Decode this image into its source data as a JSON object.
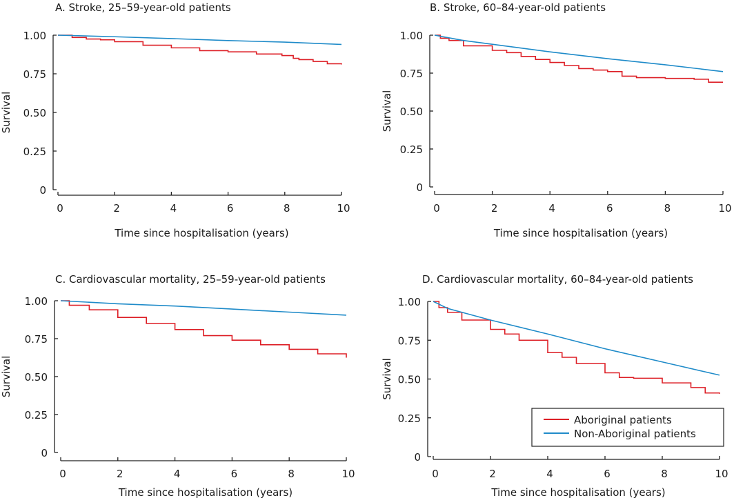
{
  "colors": {
    "aboriginal": "#dd1f26",
    "non_aboriginal": "#1f8bc9",
    "axis": "#222222"
  },
  "legend": {
    "placement": "bottom-right (panel D)",
    "entries": [
      "Aboriginal patients",
      "Non-Aboriginal patients"
    ]
  },
  "chart_data": [
    {
      "type": "line",
      "title": "A. Stroke, 25–59-year-old patients",
      "xlabel": "Time since hospitalisation (years)",
      "ylabel": "Survival",
      "xlim": [
        0,
        10
      ],
      "ylim": [
        0,
        1
      ],
      "xticks": [
        "0",
        "2",
        "4",
        "6",
        "8",
        "10"
      ],
      "yticks": [
        "0",
        "0.25",
        "0.50",
        "0.75",
        "1.00"
      ],
      "series": [
        {
          "name": "Aboriginal patients",
          "x": [
            0,
            0.5,
            1,
            1.5,
            2,
            3,
            4,
            5,
            6,
            7,
            7.9,
            8.3,
            8.5,
            9,
            9.5,
            10
          ],
          "y": [
            1,
            0.985,
            0.975,
            0.97,
            0.958,
            0.935,
            0.918,
            0.9,
            0.892,
            0.878,
            0.868,
            0.85,
            0.842,
            0.83,
            0.815,
            0.81
          ]
        },
        {
          "name": "Non-Aboriginal patients",
          "x": [
            0,
            2,
            4,
            6,
            8,
            10
          ],
          "y": [
            1,
            0.99,
            0.978,
            0.965,
            0.955,
            0.94
          ]
        }
      ]
    },
    {
      "type": "line",
      "title": "B. Stroke, 60–84-year-old patients",
      "xlabel": "Time since hospitalisation (years)",
      "ylabel": "Survival",
      "xlim": [
        0,
        10
      ],
      "ylim": [
        0,
        1
      ],
      "xticks": [
        "0",
        "2",
        "4",
        "6",
        "8",
        "10"
      ],
      "yticks": [
        "0",
        "0.25",
        "0.50",
        "0.75",
        "1.00"
      ],
      "series": [
        {
          "name": "Aboriginal patients",
          "x": [
            0,
            0.2,
            0.5,
            1,
            2,
            2.5,
            3,
            3.5,
            4,
            4.5,
            5,
            5.5,
            6,
            6.5,
            7,
            8,
            9,
            9.5,
            10
          ],
          "y": [
            1,
            0.98,
            0.965,
            0.93,
            0.9,
            0.885,
            0.86,
            0.84,
            0.82,
            0.8,
            0.78,
            0.77,
            0.76,
            0.73,
            0.72,
            0.715,
            0.71,
            0.69,
            0.69
          ]
        },
        {
          "name": "Non-Aboriginal patients",
          "x": [
            0,
            1,
            2,
            4,
            6,
            8,
            10
          ],
          "y": [
            1,
            0.965,
            0.94,
            0.89,
            0.845,
            0.805,
            0.76
          ]
        }
      ]
    },
    {
      "type": "line",
      "title": "C. Cardiovascular mortality, 25–59-year-old patients",
      "xlabel": "Time since hospitalisation (years)",
      "ylabel": "Survival",
      "xlim": [
        0,
        10
      ],
      "ylim": [
        0,
        1
      ],
      "xticks": [
        "0",
        "2",
        "4",
        "6",
        "8",
        "10"
      ],
      "yticks": [
        "0",
        "0.25",
        "0.50",
        "0.75",
        "1.00"
      ],
      "series": [
        {
          "name": "Aboriginal patients",
          "x": [
            0,
            0.3,
            1,
            2,
            3,
            4,
            5,
            6,
            7,
            8,
            9,
            10
          ],
          "y": [
            1,
            0.97,
            0.94,
            0.89,
            0.85,
            0.81,
            0.77,
            0.74,
            0.71,
            0.68,
            0.65,
            0.625
          ]
        },
        {
          "name": "Non-Aboriginal patients",
          "x": [
            0,
            2,
            4,
            6,
            8,
            10
          ],
          "y": [
            1,
            0.98,
            0.965,
            0.945,
            0.925,
            0.905
          ]
        }
      ]
    },
    {
      "type": "line",
      "title": "D. Cardiovascular mortality, 60–84-year-old patients",
      "xlabel": "Time since hospitalisation (years)",
      "ylabel": "Survival",
      "xlim": [
        0,
        10
      ],
      "ylim": [
        0,
        1
      ],
      "xticks": [
        "0",
        "2",
        "4",
        "6",
        "8",
        "10"
      ],
      "yticks": [
        "0",
        "0.25",
        "0.50",
        "0.75",
        "1.00"
      ],
      "series": [
        {
          "name": "Aboriginal patients",
          "x": [
            0,
            0.1,
            0.2,
            0.5,
            1,
            2,
            2.5,
            3,
            4,
            4.5,
            5,
            6,
            6.5,
            7,
            8,
            9,
            9.5,
            10
          ],
          "y": [
            1,
            1,
            0.96,
            0.93,
            0.88,
            0.82,
            0.79,
            0.75,
            0.67,
            0.64,
            0.6,
            0.54,
            0.51,
            0.505,
            0.475,
            0.445,
            0.41,
            0.405
          ]
        },
        {
          "name": "Non-Aboriginal patients",
          "x": [
            0,
            0.5,
            1,
            2,
            4,
            6,
            8,
            10
          ],
          "y": [
            1,
            0.955,
            0.93,
            0.88,
            0.79,
            0.695,
            0.61,
            0.525
          ]
        }
      ]
    }
  ]
}
